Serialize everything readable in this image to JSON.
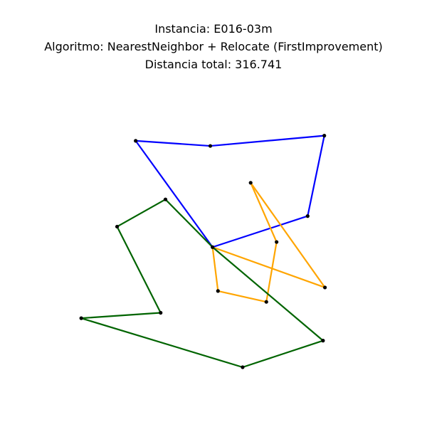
{
  "title": {
    "line1": "Instancia: E016-03m",
    "line2": "Algoritmo: NearestNeighbor + Relocate (FirstImprovement)",
    "line3": "Distancia total: 316.741"
  },
  "chart_data": {
    "type": "line",
    "title": "Instancia: E016-03m\nAlgoritmo: NearestNeighbor + Relocate (FirstImprovement)\nDistancia total: 316.741",
    "axes_visible": false,
    "xlim": [
      0,
      100
    ],
    "ylim": [
      0,
      100
    ],
    "depot": {
      "x": 49.7,
      "y": 49.5
    },
    "series": [
      {
        "color": "#0000ff",
        "route": [
          {
            "x": 49.7,
            "y": 49.5
          },
          {
            "x": 25.7,
            "y": 82.7
          },
          {
            "x": 49.0,
            "y": 81.1
          },
          {
            "x": 84.6,
            "y": 84.3
          },
          {
            "x": 79.4,
            "y": 59.2
          },
          {
            "x": 49.7,
            "y": 49.5
          }
        ]
      },
      {
        "color": "#ffa500",
        "route": [
          {
            "x": 49.7,
            "y": 49.5
          },
          {
            "x": 51.4,
            "y": 35.8
          },
          {
            "x": 66.5,
            "y": 32.4
          },
          {
            "x": 69.7,
            "y": 51.1
          },
          {
            "x": 61.6,
            "y": 69.6
          },
          {
            "x": 84.8,
            "y": 36.9
          },
          {
            "x": 49.7,
            "y": 49.5
          }
        ]
      },
      {
        "color": "#006400",
        "route": [
          {
            "x": 49.7,
            "y": 49.5
          },
          {
            "x": 35.0,
            "y": 64.4
          },
          {
            "x": 19.9,
            "y": 55.9
          },
          {
            "x": 33.5,
            "y": 29.0
          },
          {
            "x": 8.7,
            "y": 27.3
          },
          {
            "x": 59.1,
            "y": 12.0
          },
          {
            "x": 84.2,
            "y": 20.3
          },
          {
            "x": 49.7,
            "y": 49.5
          }
        ]
      }
    ]
  }
}
